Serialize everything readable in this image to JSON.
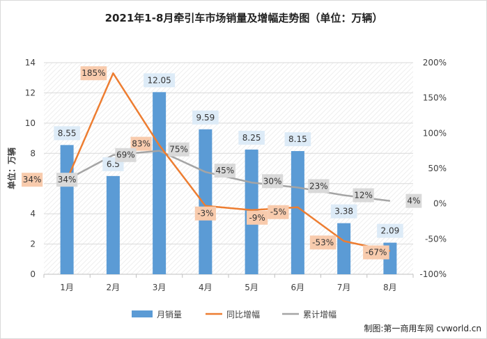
{
  "chart_data": {
    "type": "bar",
    "title": "2021年1-8月牵引车市场销量及增幅走势图（单位：万辆）",
    "categories": [
      "1月",
      "2月",
      "3月",
      "4月",
      "5月",
      "6月",
      "7月",
      "8月"
    ],
    "ylabel": "单位：万辆",
    "ylim": [
      0,
      14
    ],
    "yticks": [
      0,
      2,
      4,
      6,
      8,
      10,
      12,
      14
    ],
    "y2lim": [
      -100,
      200
    ],
    "y2ticks": [
      "-100%",
      "-50%",
      "0%",
      "50%",
      "100%",
      "150%",
      "200%"
    ],
    "y2tick_values": [
      -100,
      -50,
      0,
      50,
      100,
      150,
      200
    ],
    "series": [
      {
        "name": "月销量",
        "type": "bar",
        "axis": "left",
        "color": "#5b9bd5",
        "label_bg": "#ddebf7",
        "values": [
          8.55,
          6.5,
          12.05,
          9.59,
          8.25,
          8.15,
          3.38,
          2.09
        ],
        "labels": [
          "8.55",
          "6.5",
          "12.05",
          "9.59",
          "8.25",
          "8.15",
          "3.38",
          "2.09"
        ]
      },
      {
        "name": "同比增幅",
        "type": "line",
        "axis": "right",
        "color": "#ed7d31",
        "label_bg": "#f8cbad",
        "values": [
          34,
          185,
          83,
          -3,
          -9,
          -5,
          -53,
          -67
        ],
        "labels": [
          "34%",
          "185%",
          "83%",
          "-3%",
          "-9%",
          "-5%",
          "-53%",
          "-67%"
        ]
      },
      {
        "name": "累计增幅",
        "type": "line",
        "axis": "right",
        "color": "#a5a5a5",
        "label_bg": "#d9d9d9",
        "values": [
          34,
          69,
          75,
          45,
          30,
          23,
          12,
          4
        ],
        "labels": [
          "34%",
          "69%",
          "75%",
          "45%",
          "30%",
          "23%",
          "12%",
          "4%"
        ]
      }
    ],
    "grid": true,
    "legend": "bottom"
  },
  "credit": "制图:第一商用车网 cvworld.cn"
}
